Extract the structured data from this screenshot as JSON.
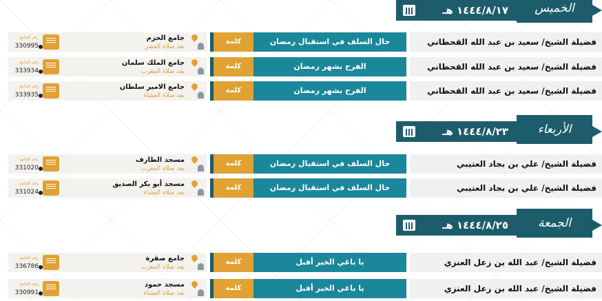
{
  "number_label": "رقم الجامع",
  "sections": [
    {
      "day": "الخميس",
      "date": "١٤٤٤/٨/١٧ هـ",
      "rows": [
        {
          "speaker": "فضيلة الشيخ/ سعيد بن عبد الله القحطاني",
          "title": "حال السلف في استقبال رمضان",
          "type": "كلمة",
          "mosque": "جامع الحزم",
          "time": "بعد صلاة العصر",
          "number": "330995"
        },
        {
          "speaker": "فضيلة الشيخ/ سعيد بن عبد الله القحطاني",
          "title": "الفرح بشهر رمضان",
          "type": "كلمة",
          "mosque": "جامع الملك سلمان",
          "time": "بعد صلاة المغرب",
          "number": "333934"
        },
        {
          "speaker": "فضيلة الشيخ/ سعيد بن عبد الله القحطاني",
          "title": "الفرح بشهر رمضان",
          "type": "كلمة",
          "mosque": "جامع الامير سلطان",
          "time": "بعد صلاة العشاء",
          "number": "333935"
        }
      ]
    },
    {
      "day": "الأربعاء",
      "date": "١٤٤٤/٨/٢٣ هـ",
      "rows": [
        {
          "speaker": "فضيلة الشيخ/ علي بن بجاد العتيبي",
          "title": "حال السلف في استقبال رمضان",
          "type": "كلمة",
          "mosque": "مسجد الطارف",
          "time": "بعد صلاة المغرب",
          "number": "331020"
        },
        {
          "speaker": "فضيلة الشيخ/ علي بن بجاد العتيبي",
          "title": "حال السلف في استقبال رمضان",
          "type": "كلمة",
          "mosque": "مسجد أبو بكر الصديق",
          "time": "بعد صلاة العشاء",
          "number": "331024"
        }
      ]
    },
    {
      "day": "الجمعة",
      "date": "١٤٤٤/٨/٢٥ هـ",
      "rows": [
        {
          "speaker": "فضيلة الشيخ/ عبد الله بن زعل العنزي",
          "title": "يا باغي الخير أقبل",
          "type": "كلمة",
          "mosque": "جامع صقرة",
          "time": "بعد صلاة المغرب",
          "number": "336786"
        },
        {
          "speaker": "فضيلة الشيخ/ عبد الله بن زعل العنزي",
          "title": "يا باغي الخير أقبل",
          "type": "كلمة",
          "mosque": "مسجد حمود",
          "time": "بعد صلاة العشاء",
          "number": "330991"
        }
      ]
    }
  ]
}
